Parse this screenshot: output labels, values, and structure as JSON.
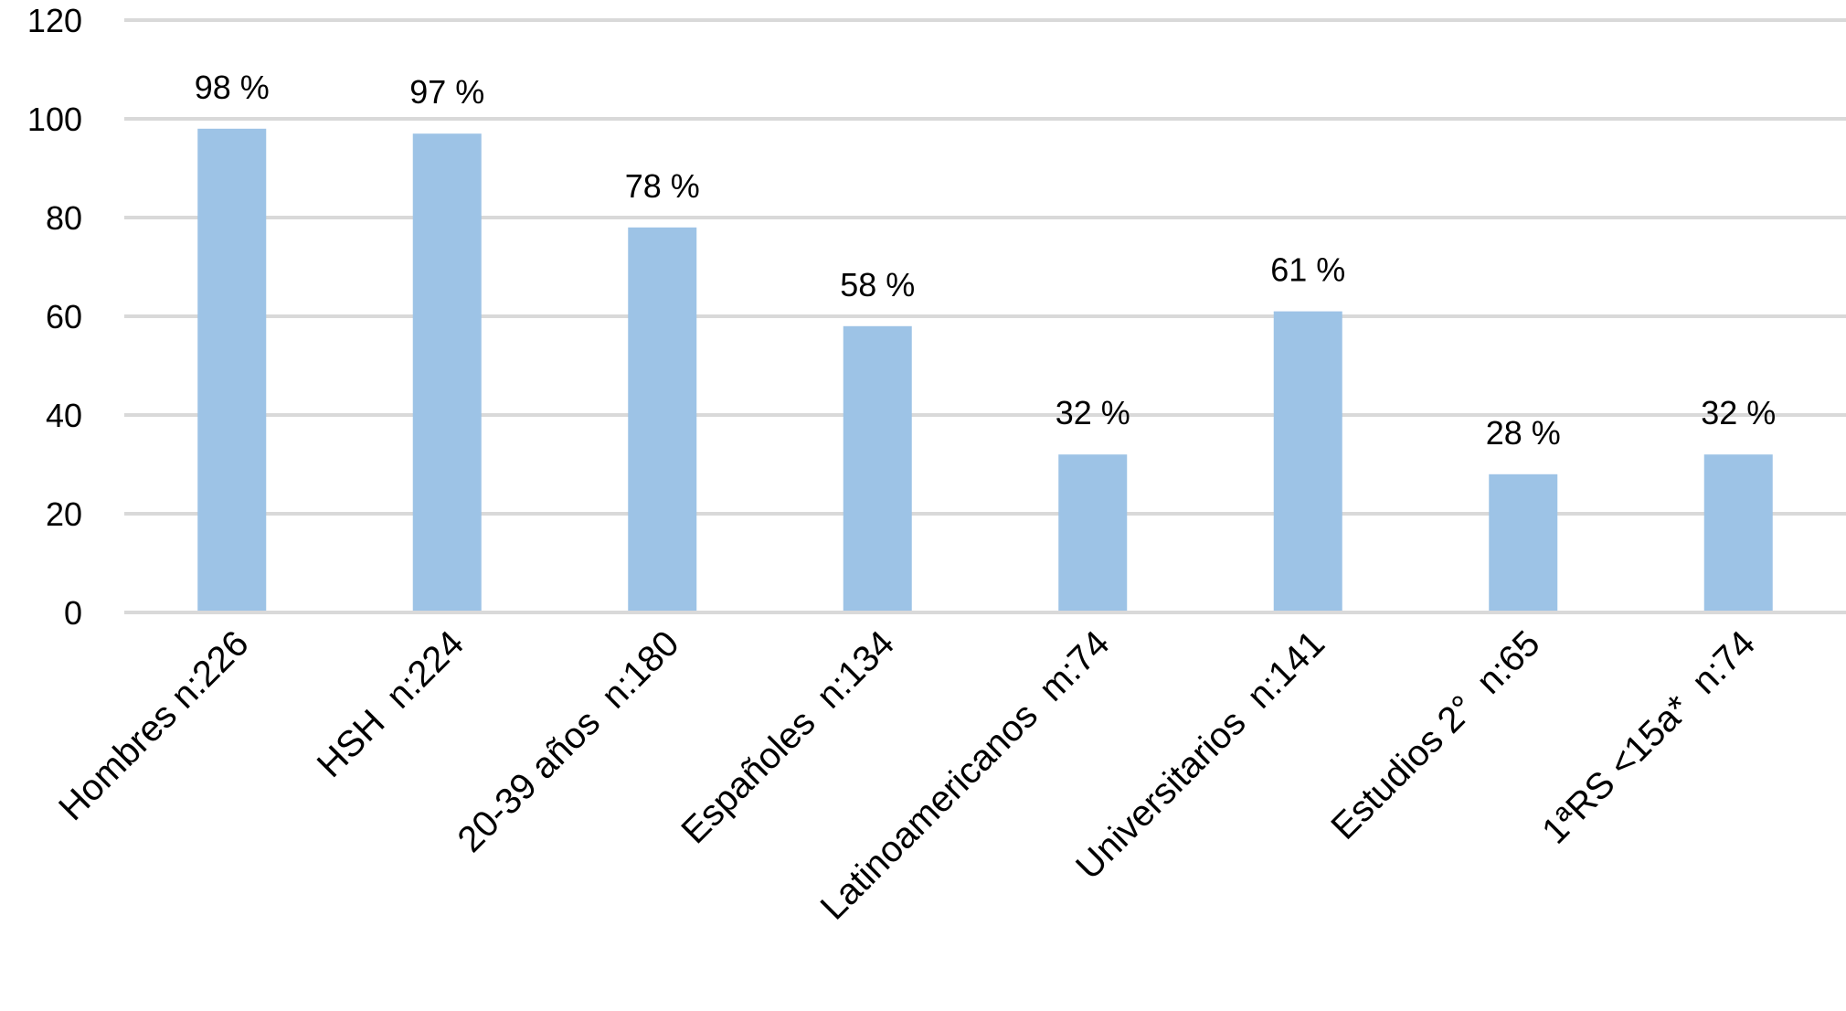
{
  "chart_data": {
    "type": "bar",
    "title": "",
    "xlabel": "",
    "ylabel": "",
    "categories": [
      "Hombres n:226",
      "HSH  n:224",
      "20-39 años  n:180",
      "Españoles  n:134",
      "Latinoamericanos  m:74",
      "Universitarios  n:141",
      "Estudios 2°  n:65",
      "1ªRS <15a*  n:74"
    ],
    "values": [
      98,
      97,
      78,
      58,
      32,
      61,
      28,
      32
    ],
    "data_labels": [
      "98 %",
      "97 %",
      "78 %",
      "58 %",
      "32 %",
      "61 %",
      "28 %",
      "32 %"
    ],
    "ylim": [
      0,
      120
    ],
    "yticks": [
      0,
      20,
      40,
      60,
      80,
      100,
      120
    ],
    "grid": true,
    "legend": "none",
    "colors": {
      "bar": "#9dc3e6",
      "grid": "#d9d9d9"
    }
  }
}
